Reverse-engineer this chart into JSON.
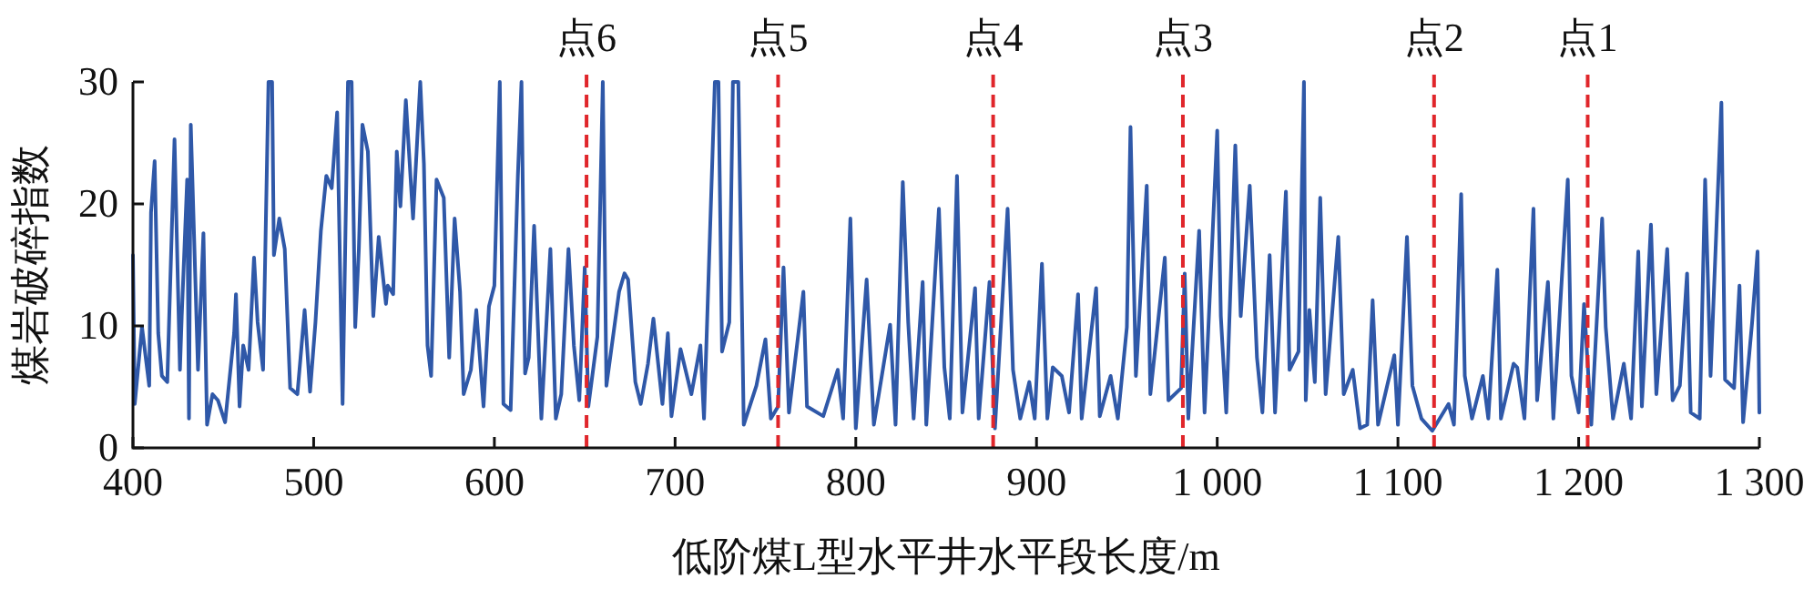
{
  "chart_data": {
    "type": "line",
    "xlabel": "低阶煤L型水平井水平段长度/m",
    "ylabel": "煤岩破碎指数",
    "xlim": [
      400,
      1300
    ],
    "xticks": [
      400,
      500,
      600,
      700,
      800,
      900,
      {
        "value": 1000,
        "label": "1 000"
      },
      {
        "value": 1100,
        "label": "1 100"
      },
      {
        "value": 1200,
        "label": "1 200"
      },
      {
        "value": 1300,
        "label": "1 300"
      }
    ],
    "ylim": [
      0,
      30
    ],
    "yticks": [
      0,
      10,
      20,
      30
    ],
    "x": [
      400,
      401,
      405,
      409,
      410,
      412,
      414,
      416,
      419,
      423,
      426,
      427,
      430,
      431,
      432,
      436,
      439,
      441,
      444,
      447,
      451,
      456,
      457,
      459,
      461,
      464,
      467,
      469,
      472,
      475,
      477,
      478,
      481,
      484,
      487,
      491,
      495,
      498,
      501,
      504,
      507,
      510,
      513,
      516,
      519,
      521,
      523,
      525,
      527,
      530,
      533,
      536,
      540,
      541,
      544,
      546,
      548,
      551,
      555,
      559,
      561,
      563,
      565,
      568,
      572,
      575,
      578,
      581,
      583,
      587,
      590,
      594,
      597,
      600,
      603,
      605,
      609,
      613,
      615,
      617,
      619,
      622,
      626,
      631,
      634,
      637,
      641,
      644,
      647,
      650,
      652,
      657,
      660,
      662,
      669,
      672,
      674,
      678,
      681,
      685,
      688,
      693,
      696,
      698,
      703,
      709,
      714,
      716,
      722,
      724,
      726,
      730,
      732,
      735,
      738,
      745,
      750,
      753,
      757,
      760,
      763,
      771,
      773,
      782,
      790,
      793,
      797,
      800,
      806,
      810,
      819,
      822,
      826,
      829,
      832,
      837,
      839,
      846,
      849,
      852,
      856,
      859,
      866,
      868,
      874,
      877,
      884,
      887,
      891,
      896,
      899,
      903,
      906,
      909,
      914,
      918,
      923,
      925,
      933,
      935,
      941,
      945,
      950,
      952,
      955,
      961,
      963,
      971,
      973,
      980,
      982,
      984,
      990,
      993,
      1000,
      1002,
      1005,
      1010,
      1013,
      1018,
      1022,
      1025,
      1029,
      1032,
      1038,
      1040,
      1045,
      1048,
      1049,
      1051,
      1054,
      1057,
      1060,
      1067,
      1070,
      1075,
      1079,
      1083,
      1086,
      1089,
      1098,
      1100,
      1105,
      1108,
      1113,
      1119,
      1128,
      1131,
      1135,
      1137,
      1141,
      1147,
      1150,
      1155,
      1157,
      1164,
      1166,
      1170,
      1175,
      1177,
      1183,
      1186,
      1194,
      1196,
      1200,
      1203,
      1207,
      1213,
      1215,
      1219,
      1225,
      1229,
      1233,
      1235,
      1240,
      1243,
      1249,
      1252,
      1256,
      1260,
      1262,
      1267,
      1270,
      1273,
      1279,
      1281,
      1286,
      1289,
      1291,
      1296,
      1299,
      1300
    ],
    "series": [
      {
        "color": "#2f58a8",
        "values": [
          15.8,
          3.6,
          9.9,
          5.1,
          19.3,
          23.5,
          9.4,
          5.9,
          5.4,
          25.3,
          6.4,
          10.8,
          22,
          2.4,
          26.5,
          6.4,
          17.6,
          1.9,
          4.4,
          3.9,
          2.1,
          9.4,
          12.6,
          3.4,
          8.4,
          6.4,
          15.6,
          10.3,
          6.4,
          30,
          30,
          15.8,
          18.8,
          16.3,
          4.9,
          4.4,
          11.3,
          4.6,
          10.3,
          17.8,
          22.3,
          21.3,
          27.5,
          3.6,
          30,
          30,
          9.9,
          16.3,
          26.5,
          24.3,
          10.8,
          17.3,
          11.8,
          13.3,
          12.6,
          24.3,
          19.8,
          28.5,
          18.8,
          30,
          23.3,
          8.4,
          5.9,
          22,
          20.5,
          7.4,
          18.8,
          12.8,
          4.4,
          6.4,
          11.3,
          3.4,
          11.6,
          13.3,
          30,
          3.6,
          3.1,
          22.3,
          30,
          6.1,
          7.4,
          18.2,
          2.4,
          16.3,
          2.4,
          4.4,
          16.3,
          8.4,
          3.9,
          14.8,
          3.4,
          9.1,
          30,
          5.1,
          12.8,
          14.3,
          13.8,
          5.4,
          3.6,
          6.9,
          10.6,
          3.6,
          9.4,
          2.6,
          8.1,
          4.4,
          8.4,
          2.4,
          30,
          30,
          7.9,
          10.3,
          30,
          30,
          1.9,
          5.1,
          8.9,
          2.4,
          3.4,
          14.8,
          2.9,
          12.8,
          3.4,
          2.6,
          6.4,
          2.4,
          18.8,
          1.6,
          13.8,
          1.9,
          10.1,
          1.9,
          21.8,
          10.3,
          2.4,
          13.6,
          1.9,
          19.6,
          6.6,
          2.4,
          22.3,
          2.9,
          13.1,
          2.4,
          13.6,
          1.6,
          19.6,
          6.4,
          2.4,
          5.4,
          2.4,
          15.1,
          2.4,
          6.6,
          5.9,
          2.9,
          12.6,
          2.4,
          13.1,
          2.6,
          5.9,
          2.4,
          9.9,
          26.3,
          5.9,
          21.5,
          4.4,
          15.6,
          3.9,
          4.9,
          14.3,
          2.4,
          17.8,
          2.9,
          26,
          10.8,
          2.9,
          24.8,
          10.8,
          21.5,
          7.4,
          2.9,
          15.8,
          2.9,
          21,
          6.4,
          7.9,
          30,
          3.9,
          11.3,
          5.4,
          20.5,
          4.4,
          17.3,
          4.4,
          6.4,
          1.6,
          1.9,
          12.1,
          1.9,
          7.6,
          1.9,
          17.3,
          5.1,
          2.4,
          1.4,
          3.6,
          1.9,
          20.8,
          5.9,
          2.4,
          5.9,
          2.4,
          14.6,
          2.4,
          6.9,
          6.6,
          2.4,
          19.6,
          3.9,
          13.6,
          2.4,
          22,
          5.9,
          2.9,
          11.8,
          1.9,
          18.8,
          9.9,
          2.4,
          6.9,
          2.4,
          16.1,
          3.4,
          18.3,
          4.4,
          16.3,
          3.9,
          5.1,
          14.3,
          2.9,
          2.4,
          22,
          5.9,
          28.3,
          5.6,
          4.9,
          13.3,
          2.1,
          10.3,
          16.1,
          2.9
        ]
      }
    ],
    "ref_lines": [
      {
        "axis": "x",
        "value": 651,
        "label": "点6",
        "color": "#e0262b",
        "line_style": "dashed"
      },
      {
        "axis": "x",
        "value": 757,
        "label": "点5",
        "color": "#e0262b",
        "line_style": "dashed"
      },
      {
        "axis": "x",
        "value": 876,
        "label": "点4",
        "color": "#e0262b",
        "line_style": "dashed"
      },
      {
        "axis": "x",
        "value": 981,
        "label": "点3",
        "color": "#e0262b",
        "line_style": "dashed"
      },
      {
        "axis": "x",
        "value": 1120,
        "label": "点2",
        "color": "#e0262b",
        "line_style": "dashed"
      },
      {
        "axis": "x",
        "value": 1205,
        "label": "点1",
        "color": "#e0262b",
        "line_style": "dashed"
      }
    ]
  }
}
